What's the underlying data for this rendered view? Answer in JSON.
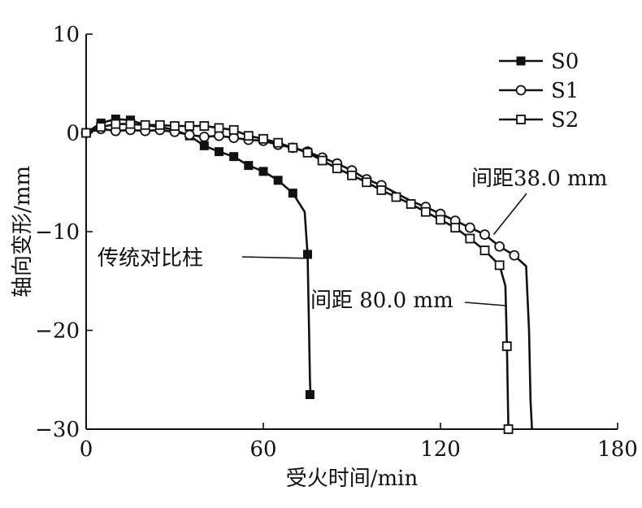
{
  "chart_data": {
    "type": "line",
    "xlabel": "受火时间/min",
    "ylabel": "轴向变形/mm",
    "xlim": [
      0,
      180
    ],
    "ylim": [
      -30,
      10
    ],
    "xticks": [
      0,
      60,
      120,
      180
    ],
    "yticks": [
      10,
      0,
      -10,
      -20,
      -30
    ],
    "xtick_labels": [
      "0",
      "60",
      "120",
      "180"
    ],
    "ytick_labels": [
      "10",
      "0",
      "−10",
      "−20",
      "−30"
    ],
    "grid": false,
    "legend_position": "top-right",
    "series": [
      {
        "name": "S0",
        "marker": "filled-square",
        "x": [
          0,
          5,
          10,
          15,
          20,
          25,
          30,
          35,
          40,
          45,
          50,
          55,
          60,
          65,
          70,
          74,
          75,
          75.5,
          75.8,
          76
        ],
        "y": [
          0,
          1.0,
          1.4,
          1.3,
          0.8,
          0.6,
          0.3,
          -0.3,
          -1.3,
          -1.9,
          -2.4,
          -3.3,
          -3.9,
          -4.8,
          -6.1,
          -8.0,
          -12.3,
          -20,
          -25,
          -26.5
        ],
        "markers_x": [
          0,
          5,
          10,
          15,
          20,
          25,
          30,
          35,
          40,
          45,
          50,
          55,
          60,
          65,
          70,
          75,
          75.8
        ],
        "markers_y": [
          0,
          1.0,
          1.4,
          1.3,
          0.8,
          0.6,
          0.3,
          -0.3,
          -1.3,
          -1.9,
          -2.4,
          -3.3,
          -3.9,
          -4.8,
          -6.1,
          -12.3,
          -26.5
        ]
      },
      {
        "name": "S1",
        "marker": "open-circle",
        "x": [
          0,
          5,
          10,
          15,
          20,
          25,
          30,
          35,
          40,
          45,
          50,
          55,
          60,
          65,
          70,
          75,
          80,
          85,
          90,
          95,
          100,
          105,
          110,
          115,
          120,
          125,
          130,
          135,
          140,
          145,
          149,
          150,
          150.5,
          151
        ],
        "y": [
          0,
          0.4,
          0.2,
          0.3,
          0.2,
          0.3,
          0.1,
          -0.2,
          -0.4,
          -0.3,
          -0.5,
          -0.7,
          -0.8,
          -1.2,
          -1.5,
          -1.9,
          -2.5,
          -3.1,
          -3.8,
          -4.7,
          -5.3,
          -6.1,
          -6.9,
          -7.5,
          -8.2,
          -8.9,
          -9.6,
          -10.3,
          -11.5,
          -12.4,
          -13.5,
          -20,
          -27,
          -30
        ],
        "markers_x": [
          0,
          5,
          10,
          15,
          20,
          25,
          30,
          35,
          40,
          45,
          50,
          55,
          60,
          65,
          70,
          75,
          80,
          85,
          90,
          95,
          100,
          115,
          120,
          125,
          130,
          135,
          140,
          145
        ],
        "markers_y": [
          0,
          0.4,
          0.2,
          0.3,
          0.2,
          0.3,
          0.1,
          -0.2,
          -0.4,
          -0.3,
          -0.5,
          -0.7,
          -0.8,
          -1.2,
          -1.5,
          -1.9,
          -2.5,
          -3.1,
          -3.8,
          -4.7,
          -5.3,
          -7.5,
          -8.2,
          -8.9,
          -9.6,
          -10.3,
          -11.5,
          -12.4
        ]
      },
      {
        "name": "S2",
        "marker": "open-square",
        "x": [
          0,
          5,
          10,
          15,
          20,
          25,
          30,
          35,
          40,
          45,
          50,
          55,
          60,
          65,
          70,
          75,
          80,
          85,
          90,
          95,
          100,
          105,
          110,
          115,
          120,
          125,
          130,
          135,
          140,
          142,
          142.5,
          143
        ],
        "y": [
          0,
          0.6,
          0.9,
          0.9,
          0.8,
          0.8,
          0.7,
          0.7,
          0.7,
          0.5,
          0.3,
          -0.3,
          -0.6,
          -1.0,
          -1.5,
          -2.0,
          -2.8,
          -3.6,
          -4.3,
          -5.0,
          -5.8,
          -6.5,
          -7.2,
          -8.0,
          -8.8,
          -9.6,
          -10.7,
          -11.9,
          -13.4,
          -15.5,
          -21.6,
          -30
        ],
        "markers_x": [
          0,
          5,
          10,
          15,
          20,
          25,
          30,
          35,
          40,
          45,
          50,
          55,
          60,
          65,
          70,
          75,
          80,
          85,
          90,
          95,
          100,
          105,
          110,
          115,
          120,
          125,
          130,
          135,
          140,
          142.5,
          143
        ],
        "markers_y": [
          0,
          0.6,
          0.9,
          0.9,
          0.8,
          0.8,
          0.7,
          0.7,
          0.7,
          0.5,
          0.3,
          -0.3,
          -0.6,
          -1.0,
          -1.5,
          -2.0,
          -2.8,
          -3.6,
          -4.3,
          -5.0,
          -5.8,
          -6.5,
          -7.2,
          -8.0,
          -8.8,
          -9.6,
          -10.7,
          -11.9,
          -13.4,
          -21.6,
          -30
        ]
      }
    ],
    "annotations": [
      {
        "text": "传统对比柱",
        "target_x": 75,
        "target_y": -12.7
      },
      {
        "text": "间距 80.0 mm",
        "target_x": 142.5,
        "target_y": -17.5
      },
      {
        "text": "间距38.0 mm",
        "target_x": 138,
        "target_y": -10.3
      }
    ]
  }
}
